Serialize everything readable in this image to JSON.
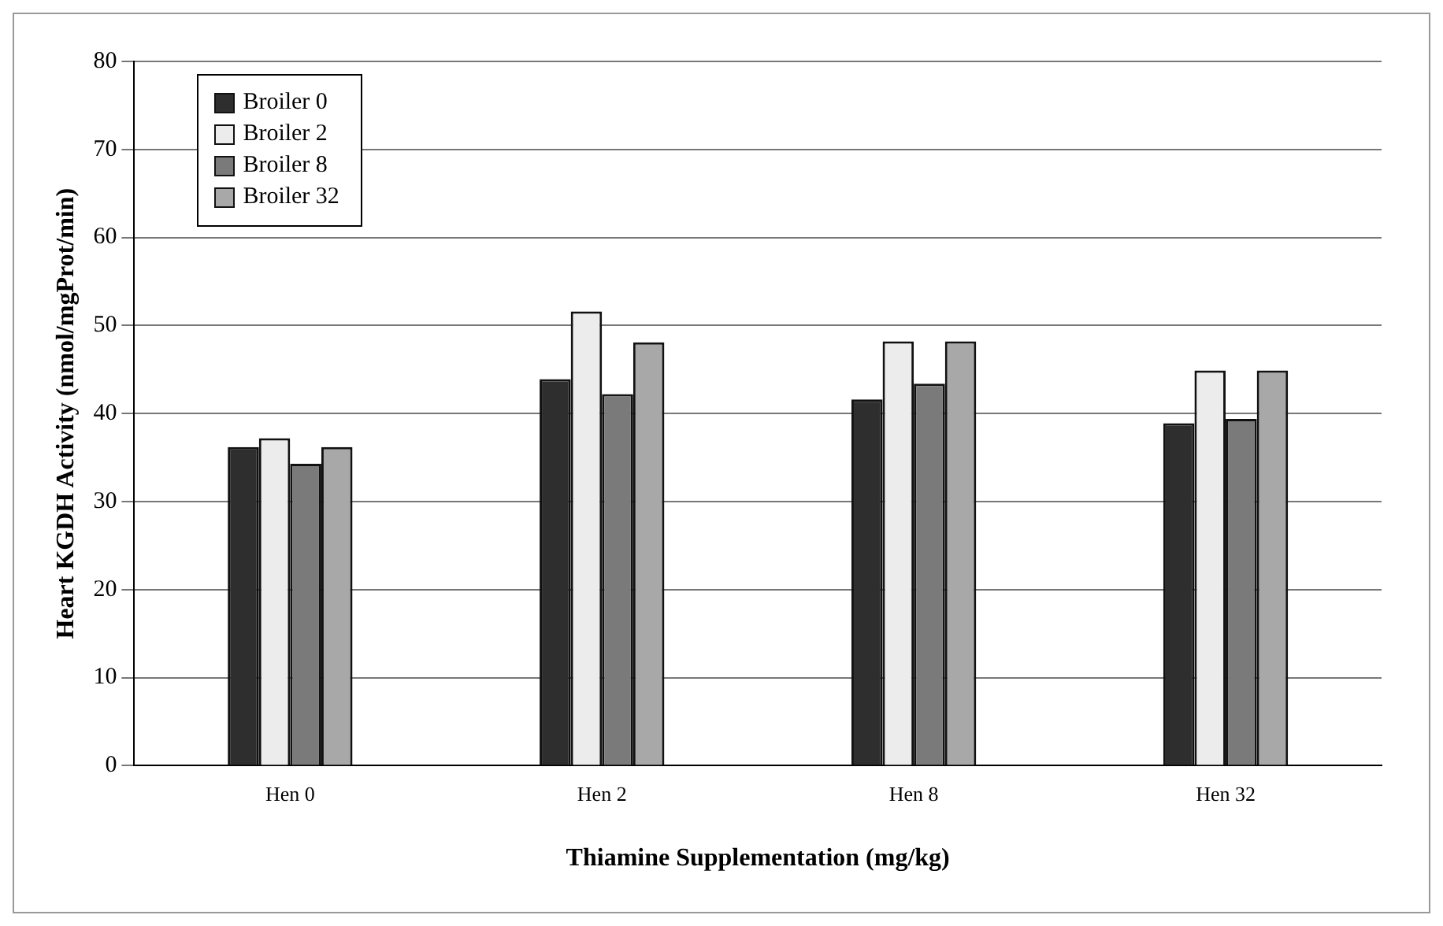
{
  "chart_data": {
    "type": "bar",
    "xlabel": "Thiamine Supplementation (mg/kg)",
    "ylabel": "Heart KGDH Activity (nmol/mgProt/min)",
    "categories": [
      "Hen 0",
      "Hen 2",
      "Hen 8",
      "Hen 32"
    ],
    "series": [
      {
        "name": "Broiler 0",
        "color": "#2e2e2e",
        "values": [
          36.2,
          43.9,
          41.6,
          38.9
        ]
      },
      {
        "name": "Broiler 2",
        "color": "#ececec",
        "values": [
          37.2,
          51.6,
          48.2,
          44.9
        ]
      },
      {
        "name": "Broiler 8",
        "color": "#7a7a7a",
        "values": [
          34.3,
          42.2,
          43.4,
          39.4
        ]
      },
      {
        "name": "Broiler 32",
        "color": "#a8a8a8",
        "values": [
          36.2,
          48.1,
          48.2,
          44.9
        ]
      }
    ],
    "ylim": [
      0,
      80
    ],
    "yticks": [
      0,
      10,
      20,
      30,
      40,
      50,
      60,
      70,
      80
    ],
    "grid": "y",
    "legend": "top left"
  }
}
